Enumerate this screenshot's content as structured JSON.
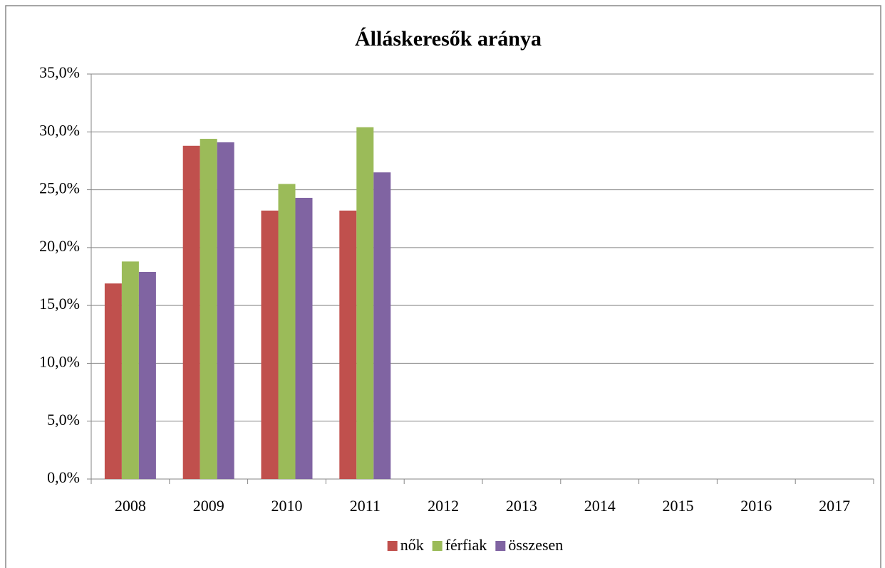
{
  "chart_data": {
    "type": "bar",
    "title": "Álláskeresők aránya",
    "categories": [
      "2008",
      "2009",
      "2010",
      "2011",
      "2012",
      "2013",
      "2014",
      "2015",
      "2016",
      "2017"
    ],
    "series": [
      {
        "name": "nők",
        "color": "#c0504d",
        "values": [
          16.9,
          28.8,
          23.2,
          23.2,
          null,
          null,
          null,
          null,
          null,
          null
        ]
      },
      {
        "name": "férfiak",
        "color": "#9bbb59",
        "values": [
          18.8,
          29.4,
          25.5,
          30.4,
          null,
          null,
          null,
          null,
          null,
          null
        ]
      },
      {
        "name": "összesen",
        "color": "#8064a2",
        "values": [
          17.9,
          29.1,
          24.3,
          26.5,
          null,
          null,
          null,
          null,
          null,
          null
        ]
      }
    ],
    "ylim": [
      0,
      35
    ],
    "yticks": [
      {
        "value": 0,
        "label": "0,0%"
      },
      {
        "value": 5,
        "label": "5,0%"
      },
      {
        "value": 10,
        "label": "10,0%"
      },
      {
        "value": 15,
        "label": "15,0%"
      },
      {
        "value": 20,
        "label": "20,0%"
      },
      {
        "value": 25,
        "label": "25,0%"
      },
      {
        "value": 30,
        "label": "30,0%"
      },
      {
        "value": 35,
        "label": "35,0%"
      }
    ],
    "grid": true,
    "legend": "bottom"
  }
}
